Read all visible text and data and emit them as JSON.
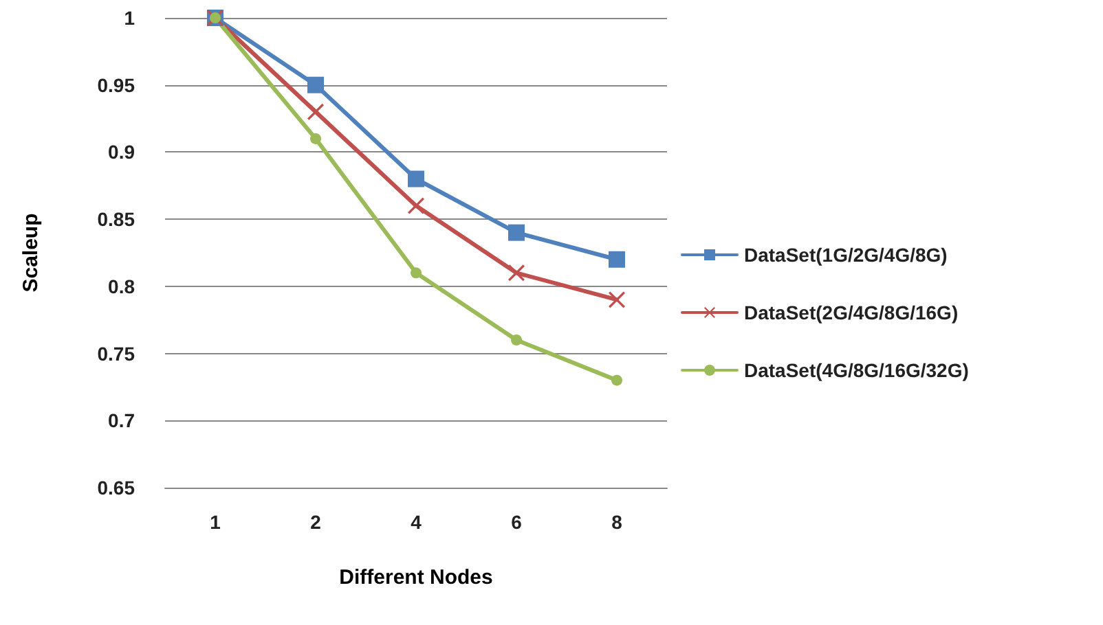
{
  "chart_data": {
    "type": "line",
    "xlabel": "Different Nodes",
    "ylabel": "Scaleup",
    "categories": [
      "1",
      "2",
      "4",
      "6",
      "8"
    ],
    "series": [
      {
        "name": "DataSet(1G/2G/4G/8G)",
        "color": "#4f81bd",
        "marker": "square",
        "values": [
          1,
          0.95,
          0.88,
          0.84,
          0.82
        ]
      },
      {
        "name": "DataSet(2G/4G/8G/16G)",
        "color": "#c0504d",
        "marker": "cross",
        "values": [
          1,
          0.93,
          0.86,
          0.81,
          0.79
        ]
      },
      {
        "name": "DataSet(4G/8G/16G/32G)",
        "color": "#9bbb59",
        "marker": "circle",
        "values": [
          1,
          0.91,
          0.81,
          0.76,
          0.73
        ]
      }
    ],
    "ylim": [
      0.65,
      1
    ],
    "yticks": [
      0.65,
      0.7,
      0.75,
      0.8,
      0.85,
      0.9,
      0.95,
      1
    ],
    "grid": "y",
    "legend": "right",
    "line_style": "solid"
  }
}
